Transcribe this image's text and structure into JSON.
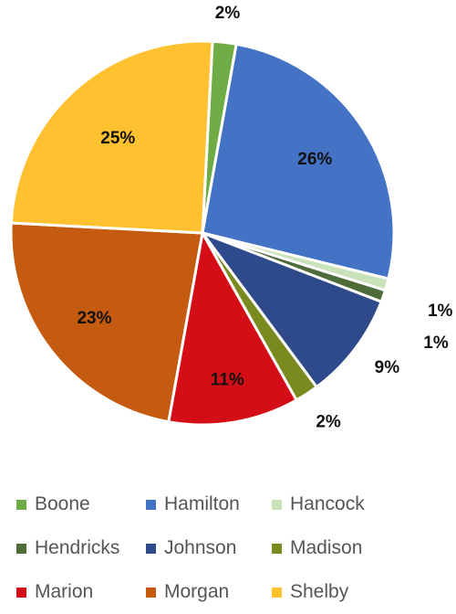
{
  "chart_data": {
    "type": "pie",
    "title": "",
    "legend_position": "bottom",
    "slices": [
      {
        "label": "Boone",
        "value": 2,
        "display": "2%",
        "color": "#6FAC46"
      },
      {
        "label": "Hamilton",
        "value": 26,
        "display": "26%",
        "color": "#4472C4"
      },
      {
        "label": "Hancock",
        "value": 1,
        "display": "1%",
        "color": "#C9E2B9"
      },
      {
        "label": "Hendricks",
        "value": 1,
        "display": "1%",
        "color": "#4E6B3A"
      },
      {
        "label": "Johnson",
        "value": 9,
        "display": "9%",
        "color": "#2E4A8A"
      },
      {
        "label": "Madison",
        "value": 2,
        "display": "2%",
        "color": "#7A8A1F"
      },
      {
        "label": "Marion",
        "value": 11,
        "display": "11%",
        "color": "#D40E16"
      },
      {
        "label": "Morgan",
        "value": 23,
        "display": "23%",
        "color": "#C55A11"
      },
      {
        "label": "Shelby",
        "value": 25,
        "display": "25%",
        "color": "#FFC12F"
      }
    ]
  }
}
